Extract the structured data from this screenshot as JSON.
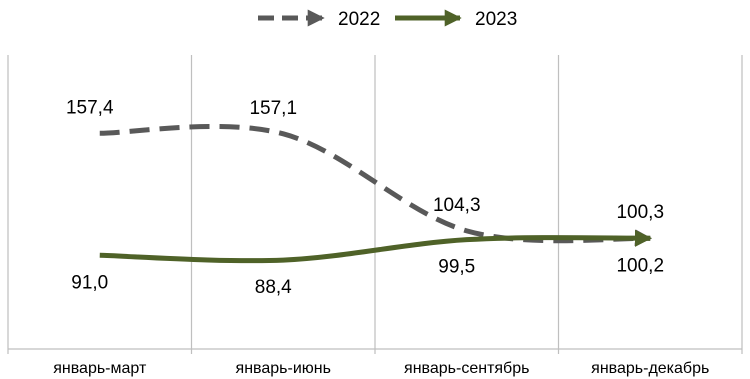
{
  "chart_data": {
    "type": "line",
    "categories": [
      "январь-март",
      "январь-июнь",
      "январь-сентябрь",
      "январь-декабрь"
    ],
    "series": [
      {
        "name": "2022",
        "values": [
          157.4,
          157.1,
          104.3,
          100.2
        ],
        "labels": [
          "157,4",
          "157,1",
          "104,3",
          "100,2"
        ],
        "color": "#595959",
        "style": "dashed"
      },
      {
        "name": "2023",
        "values": [
          91.0,
          88.4,
          99.5,
          100.3
        ],
        "labels": [
          "91,0",
          "88,4",
          "99,5",
          "100,3"
        ],
        "color": "#4f6228",
        "style": "solid"
      }
    ],
    "title": "",
    "xlabel": "",
    "ylabel": "",
    "ylim": [
      40,
      200
    ],
    "grid": "vertical",
    "legend": "top-center",
    "smooth": true,
    "arrow_ends": true
  }
}
